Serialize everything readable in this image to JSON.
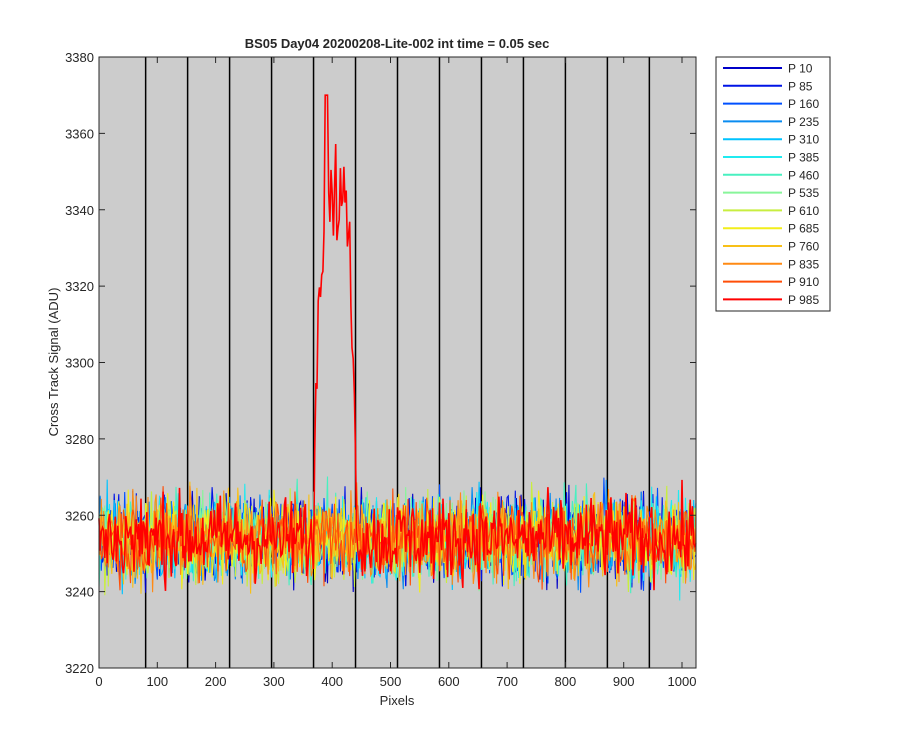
{
  "chart_data": {
    "type": "line",
    "title": "BS05 Day04 20200208-Lite-002 int time = 0.05 sec",
    "xlabel": "Pixels",
    "ylabel": "Cross Track Signal (ADU)",
    "xlim": [
      0,
      1024
    ],
    "ylim": [
      3220,
      3380
    ],
    "xticks": [
      0,
      100,
      200,
      300,
      400,
      500,
      600,
      700,
      800,
      900,
      1000
    ],
    "yticks": [
      3220,
      3240,
      3260,
      3280,
      3300,
      3320,
      3340,
      3360,
      3380
    ],
    "grid": false,
    "plot_background": "#cccccc",
    "vertical_dividers": [
      80,
      152,
      224,
      296,
      368,
      440,
      512,
      584,
      656,
      728,
      800,
      872,
      944
    ],
    "legend_position": "outside-right",
    "baseline_mean": 3254,
    "noise_range": [
      3226,
      3285
    ],
    "peak": {
      "series": "P 985",
      "x_range": [
        365,
        440
      ],
      "max_value": 3370,
      "max_x": 390
    },
    "series": [
      {
        "name": "P 10",
        "color": "#0000c8"
      },
      {
        "name": "P 85",
        "color": "#0014e6"
      },
      {
        "name": "P 160",
        "color": "#0050ff"
      },
      {
        "name": "P 235",
        "color": "#0a8cf0"
      },
      {
        "name": "P 310",
        "color": "#00c3ff"
      },
      {
        "name": "P 385",
        "color": "#20eaf0"
      },
      {
        "name": "P 460",
        "color": "#48f0c0"
      },
      {
        "name": "P 535",
        "color": "#88f59a"
      },
      {
        "name": "P 610",
        "color": "#c8ee40"
      },
      {
        "name": "P 685",
        "color": "#f2ee1a"
      },
      {
        "name": "P 760",
        "color": "#f8c018"
      },
      {
        "name": "P 835",
        "color": "#ff8a14"
      },
      {
        "name": "P 910",
        "color": "#ff4e08"
      },
      {
        "name": "P 985",
        "color": "#ff0000"
      }
    ]
  }
}
